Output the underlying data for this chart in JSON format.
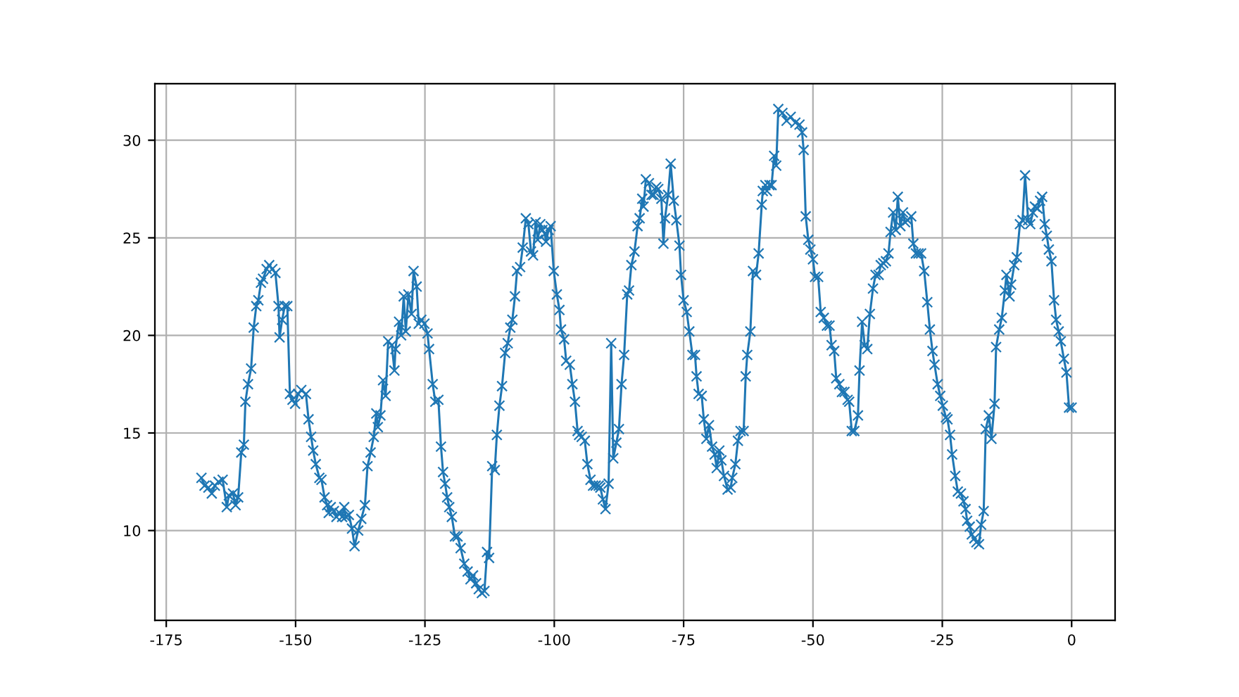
{
  "chart_data": {
    "type": "line",
    "xlim": [
      -177.2,
      8.4
    ],
    "ylim": [
      5.4,
      32.9
    ],
    "xticks": [
      -175,
      -150,
      -125,
      -100,
      -75,
      -50,
      -25,
      0
    ],
    "yticks": [
      10,
      15,
      20,
      25,
      30
    ],
    "grid": true,
    "marker": "cross",
    "line_style": "solid",
    "series": [
      {
        "color": "#1f77b4",
        "x": [
          -168.2,
          -167.6,
          -166.85,
          -166.2,
          -165.6,
          -164.9,
          -164.1,
          -163.3,
          -162.9,
          -162.1,
          -161.6,
          -161.1,
          -160.5,
          -160.0,
          -159.7,
          -159.2,
          -158.6,
          -158.1,
          -157.6,
          -157.2,
          -156.7,
          -156.3,
          -155.6,
          -155.1,
          -154.5,
          -153.9,
          -153.3,
          -153.1,
          -152.6,
          -152.1,
          -151.6,
          -151.1,
          -150.6,
          -150.1,
          -149.5,
          -148.9,
          -148.0,
          -147.5,
          -147.0,
          -146.6,
          -146.1,
          -145.4,
          -145.0,
          -144.4,
          -143.9,
          -143.6,
          -143.2,
          -142.6,
          -142.1,
          -141.5,
          -141.0,
          -140.6,
          -140.3,
          -139.7,
          -139.1,
          -138.6,
          -137.9,
          -137.3,
          -136.6,
          -136.1,
          -135.5,
          -134.9,
          -134.4,
          -134.1,
          -133.6,
          -133.1,
          -132.6,
          -132.1,
          -131.4,
          -130.9,
          -130.7,
          -130.0,
          -129.6,
          -129.1,
          -128.7,
          -128.2,
          -127.6,
          -127.2,
          -126.6,
          -126.2,
          -125.7,
          -125.1,
          -124.5,
          -124.2,
          -123.5,
          -123.0,
          -122.4,
          -121.9,
          -121.5,
          -121.1,
          -120.7,
          -120.3,
          -119.8,
          -119.2,
          -118.7,
          -118.1,
          -117.4,
          -116.75,
          -116.2,
          -115.7,
          -115.1,
          -114.6,
          -114.0,
          -113.5,
          -113.0,
          -112.6,
          -112.0,
          -111.5,
          -111.1,
          -110.6,
          -110.1,
          -109.5,
          -109.0,
          -108.5,
          -108.1,
          -107.6,
          -107.2,
          -106.6,
          -106.1,
          -105.5,
          -105.0,
          -104.5,
          -104.1,
          -103.6,
          -103.2,
          -102.7,
          -102.3,
          -101.8,
          -101.6,
          -101.1,
          -100.7,
          -100.1,
          -99.5,
          -99.0,
          -98.7,
          -98.1,
          -97.7,
          -97.0,
          -96.5,
          -96.0,
          -95.5,
          -95.2,
          -94.7,
          -94.1,
          -93.6,
          -93.0,
          -92.5,
          -92.0,
          -91.4,
          -91.1,
          -90.6,
          -90.1,
          -89.5,
          -89.0,
          -88.6,
          -88.0,
          -87.5,
          -87.0,
          -86.5,
          -85.9,
          -85.55,
          -85.1,
          -84.5,
          -83.9,
          -83.5,
          -83.0,
          -82.75,
          -82.3,
          -81.7,
          -81.2,
          -80.8,
          -80.3,
          -79.9,
          -79.3,
          -78.9,
          -78.6,
          -78.0,
          -77.5,
          -76.9,
          -76.4,
          -75.8,
          -75.5,
          -75.0,
          -74.4,
          -73.9,
          -73.3,
          -72.8,
          -72.5,
          -72.1,
          -71.5,
          -71.1,
          -70.6,
          -70.1,
          -69.5,
          -69.0,
          -68.6,
          -68.1,
          -67.7,
          -67.2,
          -66.5,
          -65.9,
          -65.6,
          -65.0,
          -64.5,
          -64.0,
          -63.4,
          -63.0,
          -62.7,
          -62.1,
          -61.6,
          -61.0,
          -60.5,
          -59.9,
          -59.7,
          -59.2,
          -58.9,
          -58.4,
          -58.0,
          -57.5,
          -57.1,
          -56.7,
          -55.9,
          -55.1,
          -54.3,
          -53.4,
          -52.6,
          -52.1,
          -51.8,
          -51.4,
          -50.9,
          -50.5,
          -50.0,
          -49.6,
          -49.0,
          -48.5,
          -47.9,
          -47.3,
          -46.8,
          -46.4,
          -45.9,
          -45.5,
          -44.9,
          -44.4,
          -43.9,
          -43.3,
          -43.0,
          -42.5,
          -42.0,
          -41.3,
          -41.0,
          -40.5,
          -40.0,
          -39.5,
          -39.0,
          -38.4,
          -37.9,
          -37.3,
          -36.9,
          -36.4,
          -35.9,
          -35.4,
          -35.0,
          -34.5,
          -34.0,
          -33.6,
          -33.1,
          -32.6,
          -32.2,
          -31.7,
          -31.0,
          -30.6,
          -30.1,
          -29.6,
          -29.1,
          -28.5,
          -27.9,
          -27.4,
          -26.9,
          -26.5,
          -25.9,
          -25.4,
          -24.9,
          -24.3,
          -24.0,
          -23.5,
          -23.1,
          -22.5,
          -22.0,
          -21.4,
          -20.9,
          -20.5,
          -20.2,
          -19.7,
          -19.3,
          -18.8,
          -18.4,
          -17.9,
          -17.5,
          -17.0,
          -16.6,
          -16.0,
          -15.5,
          -14.9,
          -14.6,
          -14.0,
          -13.5,
          -12.9,
          -12.6,
          -12.0,
          -11.7,
          -11.1,
          -10.6,
          -10.0,
          -9.5,
          -9.0,
          -8.4,
          -8.0,
          -7.5,
          -7.1,
          -6.6,
          -6.1,
          -5.7,
          -5.2,
          -4.8,
          -4.4,
          -3.9,
          -3.4,
          -3.0,
          -2.5,
          -2.1,
          -1.5,
          -1.0,
          -0.5,
          0.0
        ],
        "values": [
          12.7,
          12.3,
          12.2,
          11.9,
          12.3,
          12.5,
          12.6,
          11.2,
          11.8,
          11.9,
          11.3,
          11.7,
          14.0,
          14.4,
          16.6,
          17.5,
          18.3,
          20.4,
          21.5,
          21.8,
          22.7,
          22.9,
          23.4,
          23.6,
          23.4,
          23.2,
          21.5,
          19.9,
          20.8,
          21.5,
          21.5,
          17.0,
          16.7,
          16.5,
          17.0,
          17.2,
          17.0,
          15.7,
          14.8,
          14.1,
          13.4,
          12.7,
          12.6,
          11.7,
          11.3,
          10.9,
          11.2,
          11.0,
          10.7,
          10.9,
          10.7,
          11.2,
          10.7,
          10.8,
          10.1,
          9.2,
          10.0,
          10.6,
          11.3,
          13.3,
          14.0,
          14.8,
          16.0,
          15.3,
          15.9,
          17.7,
          16.9,
          19.7,
          19.5,
          18.2,
          19.3,
          20.7,
          20.0,
          22.0,
          20.2,
          22.1,
          21.1,
          23.3,
          22.5,
          20.6,
          20.8,
          20.6,
          20.1,
          19.3,
          17.5,
          16.6,
          16.7,
          14.3,
          13.0,
          12.4,
          11.7,
          11.2,
          10.7,
          9.7,
          9.7,
          9.1,
          8.3,
          7.9,
          7.5,
          7.7,
          7.3,
          7.0,
          6.8,
          6.9,
          8.9,
          8.6,
          13.3,
          13.1,
          14.9,
          16.4,
          17.4,
          19.1,
          19.6,
          20.4,
          20.8,
          22.0,
          23.3,
          23.5,
          24.5,
          26.0,
          25.7,
          24.3,
          24.1,
          25.8,
          24.9,
          25.7,
          25.4,
          25.2,
          24.8,
          25.4,
          25.6,
          23.3,
          22.1,
          21.3,
          20.3,
          19.8,
          18.7,
          18.5,
          17.5,
          16.6,
          15.1,
          14.9,
          14.8,
          14.6,
          13.4,
          12.6,
          12.3,
          12.3,
          12.3,
          12.2,
          11.6,
          11.1,
          12.4,
          19.6,
          13.7,
          14.5,
          15.2,
          17.5,
          19.0,
          22.1,
          22.3,
          23.6,
          24.3,
          25.6,
          26.0,
          27.0,
          26.6,
          28.0,
          27.8,
          27.2,
          27.2,
          27.6,
          27.5,
          27.0,
          24.7,
          26.0,
          27.2,
          28.8,
          26.9,
          25.9,
          24.6,
          23.1,
          21.8,
          21.2,
          20.2,
          19.0,
          19.0,
          17.9,
          17.0,
          16.9,
          15.7,
          14.7,
          15.4,
          14.3,
          13.9,
          13.2,
          14.1,
          13.6,
          12.8,
          12.1,
          12.2,
          12.7,
          13.4,
          14.6,
          15.1,
          15.1,
          17.9,
          19.0,
          20.2,
          23.3,
          23.1,
          24.2,
          26.7,
          27.4,
          27.7,
          27.4,
          27.7,
          27.7,
          29.2,
          28.7,
          31.6,
          31.4,
          31.0,
          31.2,
          30.9,
          30.8,
          30.4,
          29.5,
          26.1,
          24.9,
          24.4,
          23.9,
          23.0,
          23.0,
          21.2,
          20.9,
          20.5,
          20.5,
          19.5,
          19.2,
          17.8,
          17.5,
          17.1,
          17.1,
          16.7,
          16.6,
          15.1,
          15.1,
          15.9,
          18.2,
          20.7,
          19.5,
          19.3,
          21.1,
          22.4,
          23.1,
          23.1,
          23.6,
          23.7,
          23.8,
          24.2,
          25.3,
          26.3,
          25.4,
          27.1,
          25.6,
          26.3,
          25.8,
          25.9,
          26.1,
          24.7,
          24.2,
          24.2,
          24.2,
          23.3,
          21.7,
          20.3,
          19.2,
          18.5,
          17.5,
          16.9,
          16.4,
          15.8,
          15.7,
          14.9,
          13.9,
          12.8,
          12.0,
          11.9,
          11.5,
          11.1,
          10.5,
          10.2,
          9.8,
          9.6,
          9.4,
          9.3,
          10.3,
          11.0,
          15.2,
          15.9,
          14.7,
          16.5,
          19.4,
          20.3,
          20.9,
          22.3,
          23.1,
          22.0,
          22.6,
          23.6,
          24.0,
          25.7,
          25.9,
          28.2,
          25.9,
          25.7,
          26.3,
          26.6,
          26.5,
          26.9,
          27.1,
          25.7,
          25.1,
          24.4,
          23.8,
          21.8,
          20.8,
          20.2,
          19.7,
          18.8,
          18.1,
          16.3,
          16.3
        ]
      }
    ]
  }
}
